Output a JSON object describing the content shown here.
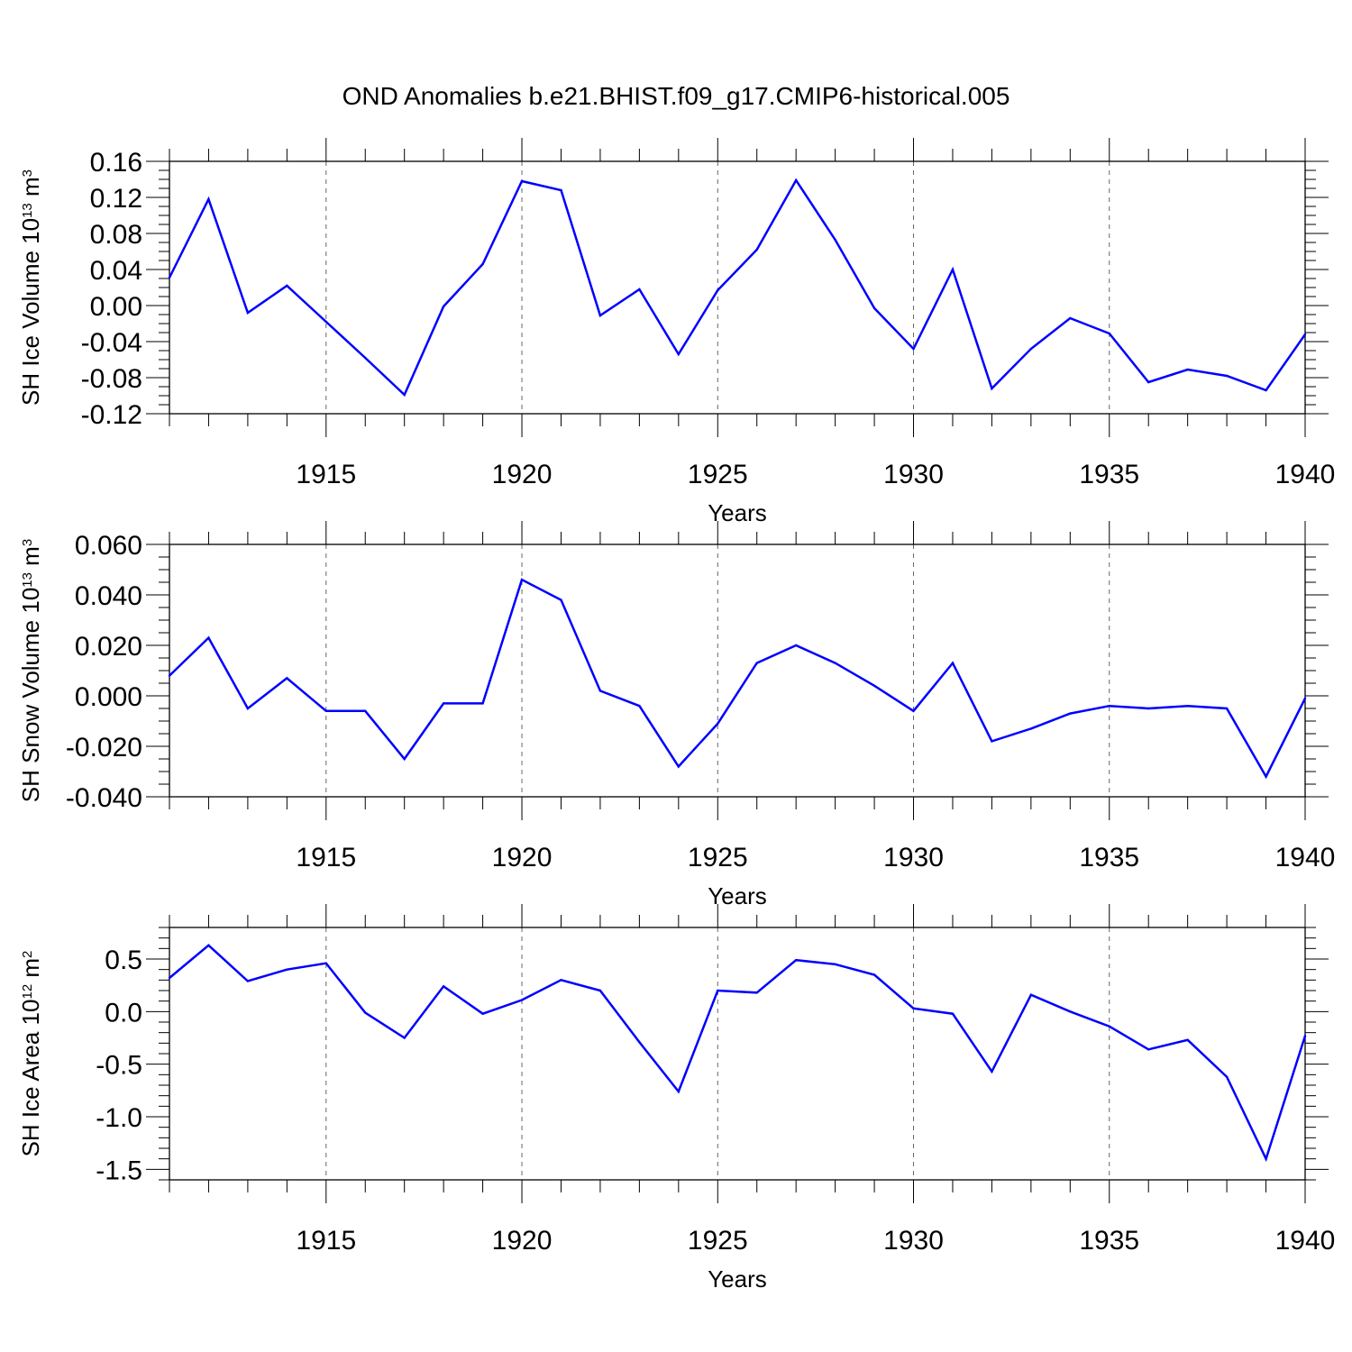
{
  "title": "OND Anomalies b.e21.BHIST.f09_g17.CMIP6-historical.005",
  "line_color": "#0000ff",
  "chart_data": [
    {
      "type": "line",
      "ylabel_main": "SH Ice Volume 10",
      "ylabel_sup": "13",
      "ylabel_unit": " m",
      "ylabel_unit_sup": "3",
      "xlabel": "Years",
      "xlim": [
        1911,
        1940
      ],
      "ylim": [
        -0.12,
        0.16
      ],
      "xticks": [
        "1915",
        "1920",
        "1925",
        "1930",
        "1935",
        "1940"
      ],
      "yticks": [
        "0.16",
        "0.12",
        "0.08",
        "0.04",
        "0.00",
        "-0.04",
        "-0.08",
        "-0.12"
      ],
      "x": [
        1911,
        1912,
        1913,
        1914,
        1915,
        1916,
        1917,
        1918,
        1919,
        1920,
        1921,
        1922,
        1923,
        1924,
        1925,
        1926,
        1927,
        1928,
        1929,
        1930,
        1931,
        1932,
        1933,
        1934,
        1935,
        1936,
        1937,
        1938,
        1939,
        1940
      ],
      "values": [
        0.031,
        0.118,
        -0.008,
        0.022,
        -0.018,
        -0.058,
        -0.099,
        -0.001,
        0.046,
        0.138,
        0.128,
        -0.011,
        0.018,
        -0.054,
        0.017,
        0.062,
        0.139,
        0.073,
        -0.003,
        -0.048,
        0.04,
        -0.092,
        -0.048,
        -0.014,
        -0.031,
        -0.085,
        -0.071,
        -0.078,
        -0.094,
        -0.032
      ]
    },
    {
      "type": "line",
      "ylabel_main": "SH Snow Volume 10",
      "ylabel_sup": "13",
      "ylabel_unit": " m",
      "ylabel_unit_sup": "3",
      "xlabel": "Years",
      "xlim": [
        1911,
        1940
      ],
      "ylim": [
        -0.04,
        0.06
      ],
      "xticks": [
        "1915",
        "1920",
        "1925",
        "1930",
        "1935",
        "1940"
      ],
      "yticks": [
        "0.060",
        "0.040",
        "0.020",
        "0.000",
        "-0.020",
        "-0.040"
      ],
      "x": [
        1911,
        1912,
        1913,
        1914,
        1915,
        1916,
        1917,
        1918,
        1919,
        1920,
        1921,
        1922,
        1923,
        1924,
        1925,
        1926,
        1927,
        1928,
        1929,
        1930,
        1931,
        1932,
        1933,
        1934,
        1935,
        1936,
        1937,
        1938,
        1939,
        1940
      ],
      "values": [
        0.008,
        0.023,
        -0.005,
        0.007,
        -0.006,
        -0.006,
        -0.025,
        -0.003,
        -0.003,
        0.046,
        0.038,
        0.002,
        -0.004,
        -0.028,
        -0.011,
        0.013,
        0.02,
        0.013,
        0.004,
        -0.006,
        0.013,
        -0.018,
        -0.013,
        -0.007,
        -0.004,
        -0.005,
        -0.004,
        -0.005,
        -0.032,
        -0.001
      ]
    },
    {
      "type": "line",
      "ylabel_main": "SH Ice Area 10",
      "ylabel_sup": "12",
      "ylabel_unit": " m",
      "ylabel_unit_sup": "2",
      "xlabel": "Years",
      "xlim": [
        1911,
        1940
      ],
      "ylim": [
        -1.6,
        0.8
      ],
      "xticks": [
        "1915",
        "1920",
        "1925",
        "1930",
        "1935",
        "1940"
      ],
      "yticks": [
        "0.5",
        "0.0",
        "-0.5",
        "-1.0",
        "-1.5"
      ],
      "x": [
        1911,
        1912,
        1913,
        1914,
        1915,
        1916,
        1917,
        1918,
        1919,
        1920,
        1921,
        1922,
        1923,
        1924,
        1925,
        1926,
        1927,
        1928,
        1929,
        1930,
        1931,
        1932,
        1933,
        1934,
        1935,
        1936,
        1937,
        1938,
        1939,
        1940
      ],
      "values": [
        0.32,
        0.63,
        0.29,
        0.4,
        0.46,
        -0.01,
        -0.25,
        0.24,
        -0.02,
        0.11,
        0.3,
        0.2,
        -0.29,
        -0.76,
        0.2,
        0.18,
        0.49,
        0.45,
        0.35,
        0.03,
        -0.02,
        -0.57,
        0.16,
        0.0,
        -0.14,
        -0.36,
        -0.27,
        -0.62,
        -1.4,
        -0.23
      ]
    }
  ]
}
